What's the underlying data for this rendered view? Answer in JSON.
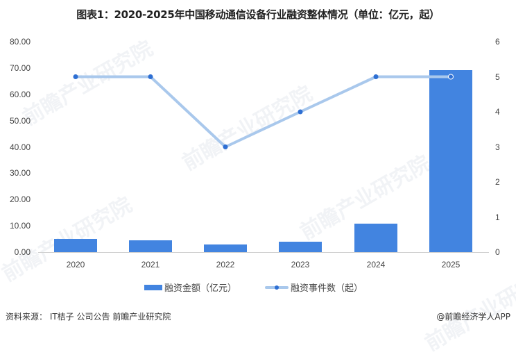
{
  "title": "图表1：2020-2025年中国移动通信设备行业融资整体情况（单位：亿元，起）",
  "chart_data": {
    "type": "bar+line",
    "title": "图表1：2020-2025年中国移动通信设备行业融资整体情况（单位：亿元，起）",
    "categories": [
      "2020",
      "2021",
      "2022",
      "2023",
      "2024",
      "2025"
    ],
    "series": [
      {
        "name": "融资金额（亿元）",
        "type": "bar",
        "axis": "left",
        "color": "#4284e0",
        "values": [
          5.0,
          4.5,
          2.9,
          4.0,
          10.8,
          69.2
        ]
      },
      {
        "name": "融资事件数（起）",
        "type": "line",
        "axis": "right",
        "color": "#a9c8ec",
        "marker_color": "#2e6fd3",
        "values": [
          5,
          5,
          3,
          4,
          5,
          5
        ]
      }
    ],
    "left_axis": {
      "min": 0,
      "max": 80,
      "step": 10,
      "ticks": [
        "0.00",
        "10.00",
        "20.00",
        "30.00",
        "40.00",
        "50.00",
        "60.00",
        "70.00",
        "80.00"
      ]
    },
    "right_axis": {
      "min": 0,
      "max": 6,
      "step": 1,
      "ticks": [
        "0",
        "1",
        "2",
        "3",
        "4",
        "5",
        "6"
      ]
    },
    "xlabel": "",
    "ylabel": "",
    "grid": false,
    "legend_position": "bottom"
  },
  "legend": {
    "bar_label": "融资金额（亿元）",
    "line_label": "融资事件数（起）"
  },
  "footer": {
    "source": "资料来源：  IT桔子 公司公告  前瞻产业研究院",
    "brand": "@前瞻经济学人APP"
  },
  "watermark": "前瞻产业研究院"
}
